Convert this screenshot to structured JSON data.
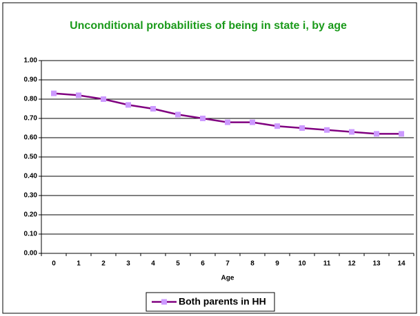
{
  "chart_data": {
    "type": "line",
    "title": "Unconditional probabilities of being in state i, by age",
    "x_label": "Age",
    "categories": [
      "0",
      "1",
      "2",
      "3",
      "4",
      "5",
      "6",
      "7",
      "8",
      "9",
      "10",
      "11",
      "12",
      "13",
      "14"
    ],
    "series": [
      {
        "name": "Both parents in HH",
        "color": "#800080",
        "marker_color": "#cc99ff",
        "values": [
          0.83,
          0.82,
          0.8,
          0.77,
          0.75,
          0.72,
          0.7,
          0.68,
          0.68,
          0.66,
          0.65,
          0.64,
          0.63,
          0.62,
          0.62
        ]
      }
    ],
    "ylim": [
      0,
      1
    ],
    "yticks": [
      {
        "value": 0,
        "label": "0.00"
      },
      {
        "value": 0.1,
        "label": "0.10"
      },
      {
        "value": 0.2,
        "label": "0.20"
      },
      {
        "value": 0.3,
        "label": "0.30"
      },
      {
        "value": 0.4,
        "label": "0.40"
      },
      {
        "value": 0.5,
        "label": "0.50"
      },
      {
        "value": 0.6,
        "label": "0.60"
      },
      {
        "value": 0.7,
        "label": "0.70"
      },
      {
        "value": 0.8,
        "label": "0.80"
      },
      {
        "value": 0.9,
        "label": "0.90"
      },
      {
        "value": 1,
        "label": "1.00"
      }
    ],
    "grid": true,
    "legend": "bottom"
  }
}
